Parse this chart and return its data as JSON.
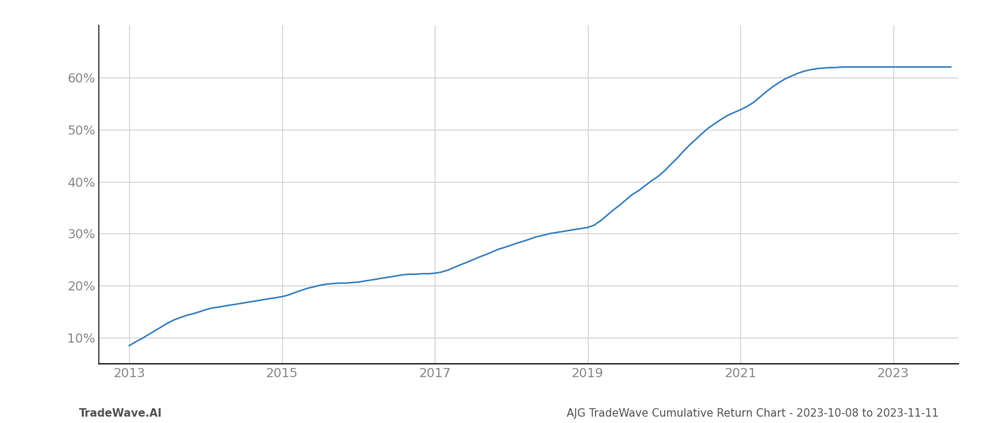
{
  "title": "AJG TradeWave Cumulative Return Chart - 2023-10-08 to 2023-11-11",
  "footer_left": "TradeWave.AI",
  "line_color": "#3a80c0",
  "background_color": "#ffffff",
  "grid_color": "#cccccc",
  "x_years": [
    2013,
    2015,
    2017,
    2019,
    2021,
    2023
  ],
  "x_data": [
    2013.0,
    2013.08,
    2013.17,
    2013.25,
    2013.33,
    2013.42,
    2013.5,
    2013.58,
    2013.67,
    2013.75,
    2013.83,
    2013.92,
    2014.0,
    2014.08,
    2014.17,
    2014.25,
    2014.33,
    2014.42,
    2014.5,
    2014.58,
    2014.67,
    2014.75,
    2014.83,
    2014.92,
    2015.0,
    2015.08,
    2015.17,
    2015.25,
    2015.33,
    2015.42,
    2015.5,
    2015.58,
    2015.67,
    2015.75,
    2015.83,
    2015.92,
    2016.0,
    2016.08,
    2016.17,
    2016.25,
    2016.33,
    2016.42,
    2016.5,
    2016.58,
    2016.67,
    2016.75,
    2016.83,
    2016.92,
    2017.0,
    2017.08,
    2017.17,
    2017.25,
    2017.33,
    2017.42,
    2017.5,
    2017.58,
    2017.67,
    2017.75,
    2017.83,
    2017.92,
    2018.0,
    2018.08,
    2018.17,
    2018.25,
    2018.33,
    2018.42,
    2018.5,
    2018.58,
    2018.67,
    2018.75,
    2018.83,
    2018.92,
    2019.0,
    2019.08,
    2019.17,
    2019.25,
    2019.33,
    2019.42,
    2019.5,
    2019.58,
    2019.67,
    2019.75,
    2019.83,
    2019.92,
    2020.0,
    2020.08,
    2020.17,
    2020.25,
    2020.33,
    2020.42,
    2020.5,
    2020.58,
    2020.67,
    2020.75,
    2020.83,
    2020.92,
    2021.0,
    2021.08,
    2021.17,
    2021.25,
    2021.33,
    2021.42,
    2021.5,
    2021.58,
    2021.67,
    2021.75,
    2021.83,
    2021.92,
    2022.0,
    2022.08,
    2022.17,
    2022.25,
    2022.33,
    2022.42,
    2022.5,
    2022.58,
    2022.67,
    2022.75,
    2022.83,
    2022.92,
    2023.0,
    2023.08,
    2023.17,
    2023.25,
    2023.33,
    2023.42,
    2023.5,
    2023.58,
    2023.67,
    2023.75
  ],
  "y_data": [
    8.5,
    9.2,
    9.9,
    10.6,
    11.3,
    12.1,
    12.8,
    13.4,
    13.9,
    14.3,
    14.6,
    15.0,
    15.4,
    15.7,
    15.9,
    16.1,
    16.3,
    16.5,
    16.7,
    16.9,
    17.1,
    17.3,
    17.5,
    17.7,
    17.9,
    18.2,
    18.7,
    19.1,
    19.5,
    19.8,
    20.1,
    20.3,
    20.4,
    20.5,
    20.5,
    20.6,
    20.7,
    20.9,
    21.1,
    21.3,
    21.5,
    21.7,
    21.9,
    22.1,
    22.2,
    22.2,
    22.3,
    22.3,
    22.4,
    22.6,
    23.0,
    23.5,
    24.0,
    24.5,
    25.0,
    25.5,
    26.0,
    26.5,
    27.0,
    27.4,
    27.8,
    28.2,
    28.6,
    29.0,
    29.4,
    29.7,
    30.0,
    30.2,
    30.4,
    30.6,
    30.8,
    31.0,
    31.2,
    31.6,
    32.5,
    33.5,
    34.5,
    35.5,
    36.5,
    37.5,
    38.3,
    39.2,
    40.1,
    41.0,
    42.0,
    43.2,
    44.5,
    45.8,
    47.0,
    48.2,
    49.3,
    50.3,
    51.2,
    52.0,
    52.7,
    53.3,
    53.8,
    54.4,
    55.2,
    56.2,
    57.2,
    58.2,
    59.0,
    59.7,
    60.3,
    60.8,
    61.2,
    61.5,
    61.7,
    61.8,
    61.9,
    61.9,
    62.0,
    62.0,
    62.0,
    62.0,
    62.0,
    62.0,
    62.0,
    62.0,
    62.0,
    62.0,
    62.0,
    62.0,
    62.0,
    62.0,
    62.0,
    62.0,
    62.0,
    62.0
  ],
  "ylim": [
    5,
    70
  ],
  "xlim": [
    2012.6,
    2023.85
  ],
  "yticks": [
    10,
    20,
    30,
    40,
    50,
    60
  ],
  "title_fontsize": 11,
  "footer_fontsize": 11,
  "axis_tick_fontsize": 13,
  "line_width": 1.6,
  "spine_color": "#333333",
  "tick_color": "#888888"
}
